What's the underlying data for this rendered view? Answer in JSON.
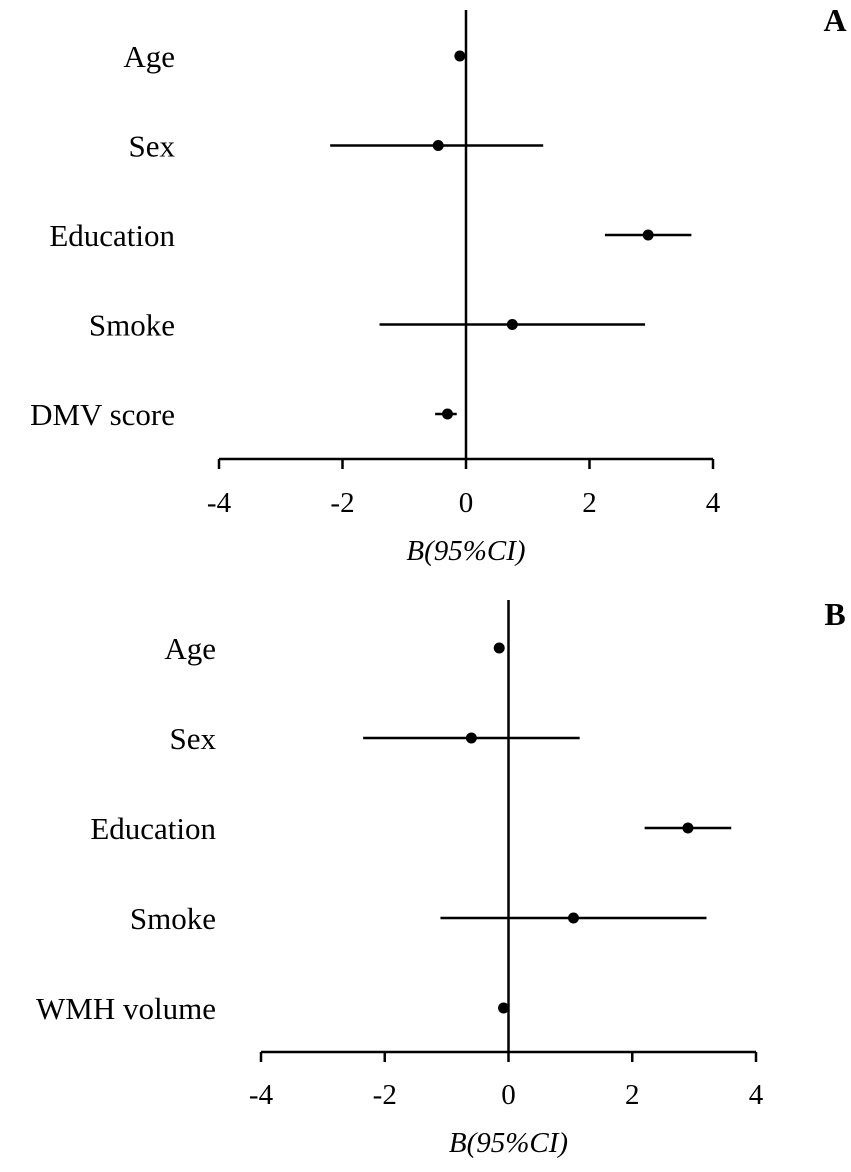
{
  "chart_data": [
    {
      "type": "forest",
      "panel": "A",
      "xlabel": "B(95%CI)",
      "xlim": [
        -4,
        4
      ],
      "xticks": [
        -4,
        -2,
        0,
        2,
        4
      ],
      "xtick_labels": [
        "-4",
        "-2",
        "0",
        "2",
        "4"
      ],
      "reference_line": 0,
      "categories": [
        "Age",
        "Sex",
        "Education",
        "Smoke",
        "DMV score"
      ],
      "estimates": [
        -0.1,
        -0.45,
        2.95,
        0.75,
        -0.3
      ],
      "ci_low": [
        -0.1,
        -2.2,
        2.25,
        -1.4,
        -0.5
      ],
      "ci_high": [
        -0.1,
        1.25,
        3.65,
        2.9,
        -0.15
      ]
    },
    {
      "type": "forest",
      "panel": "B",
      "xlabel": "B(95%CI)",
      "xlim": [
        -4,
        4
      ],
      "xticks": [
        -4,
        -2,
        0,
        2,
        4
      ],
      "xtick_labels": [
        "-4",
        "-2",
        "0",
        "2",
        "4"
      ],
      "reference_line": 0,
      "categories": [
        "Age",
        "Sex",
        "Education",
        "Smoke",
        "WMH volume"
      ],
      "estimates": [
        -0.15,
        -0.6,
        2.9,
        1.05,
        -0.08
      ],
      "ci_low": [
        -0.15,
        -2.35,
        2.2,
        -1.1,
        -0.08
      ],
      "ci_high": [
        -0.15,
        1.15,
        3.6,
        3.2,
        -0.08
      ]
    }
  ]
}
